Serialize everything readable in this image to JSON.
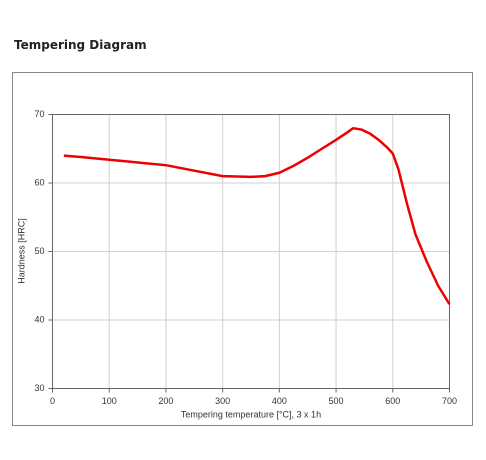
{
  "chart_data": {
    "type": "line",
    "title": "Tempering Diagram",
    "x_label": "Tempering temperature [°C], 3 x 1h",
    "y_label": "Hardness [HRC]",
    "xlim": [
      0,
      700
    ],
    "xticks": [
      0,
      100,
      200,
      300,
      400,
      500,
      600,
      700
    ],
    "ylim": [
      30,
      70
    ],
    "yticks": [
      30,
      40,
      50,
      60,
      70
    ],
    "grid": true,
    "x": [
      20,
      50,
      100,
      150,
      200,
      250,
      300,
      350,
      375,
      400,
      425,
      450,
      475,
      500,
      520,
      530,
      545,
      560,
      575,
      590,
      600,
      610,
      625,
      640,
      660,
      680,
      700
    ],
    "series": [
      {
        "color": "#ee0000",
        "values": [
          64,
          63.8,
          63.4,
          63,
          62.6,
          61.8,
          61,
          60.9,
          61,
          61.5,
          62.5,
          63.7,
          65,
          66.3,
          67.4,
          68,
          67.8,
          67.2,
          66.3,
          65.2,
          64.3,
          62,
          57,
          52.5,
          48.5,
          45,
          42.3
        ]
      }
    ]
  }
}
